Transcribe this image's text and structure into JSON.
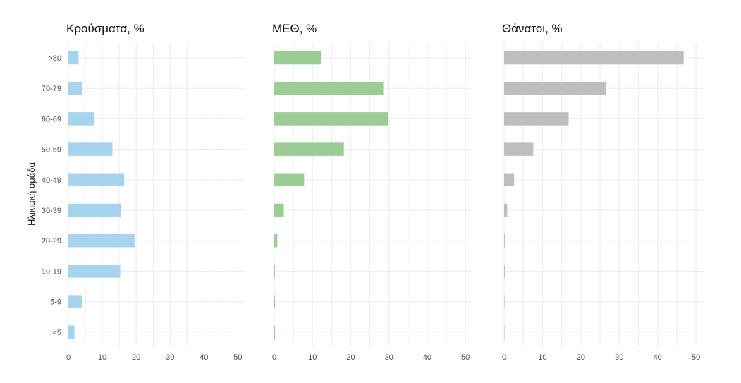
{
  "chart_data": [
    {
      "type": "bar",
      "orientation": "horizontal",
      "title": "Κρούσματα, %",
      "ylabel": "Ηλικιακή ομάδα",
      "categories": [
        ">80",
        "70-79",
        "60-69",
        "50-59",
        "40-49",
        "30-39",
        "20-29",
        "10-19",
        "5-9",
        "<5"
      ],
      "values": [
        3,
        4,
        7.5,
        13,
        16.5,
        15.5,
        19.5,
        15.3,
        4,
        1.8
      ],
      "xlim": [
        0,
        52
      ],
      "xticks": [
        "0",
        "10",
        "20",
        "30",
        "40",
        "50"
      ],
      "color": "#a6d3ee",
      "grid": true
    },
    {
      "type": "bar",
      "orientation": "horizontal",
      "title": "ΜΕΘ, %",
      "categories": [
        ">80",
        "70-79",
        "60-69",
        "50-59",
        "40-49",
        "30-39",
        "20-29",
        "10-19",
        "5-9",
        "<5"
      ],
      "values": [
        12.3,
        28.5,
        29.8,
        18.2,
        7.8,
        2.5,
        0.8,
        0.2,
        0.1,
        0.1
      ],
      "xlim": [
        0,
        52
      ],
      "xticks": [
        "0",
        "10",
        "20",
        "30",
        "40",
        "50"
      ],
      "color": "#9ccd96",
      "grid": true
    },
    {
      "type": "bar",
      "orientation": "horizontal",
      "title": "Θάνατοι, %",
      "categories": [
        ">80",
        "70-79",
        "60-69",
        "50-59",
        "40-49",
        "30-39",
        "20-29",
        "10-19",
        "5-9",
        "<5"
      ],
      "values": [
        46.8,
        26.5,
        16.8,
        7.6,
        2.6,
        0.8,
        0.1,
        0.1,
        0,
        0
      ],
      "xlim": [
        0,
        52
      ],
      "xticks": [
        "0",
        "10",
        "20",
        "30",
        "40",
        "50"
      ],
      "color": "#bebebe",
      "grid": true
    }
  ]
}
